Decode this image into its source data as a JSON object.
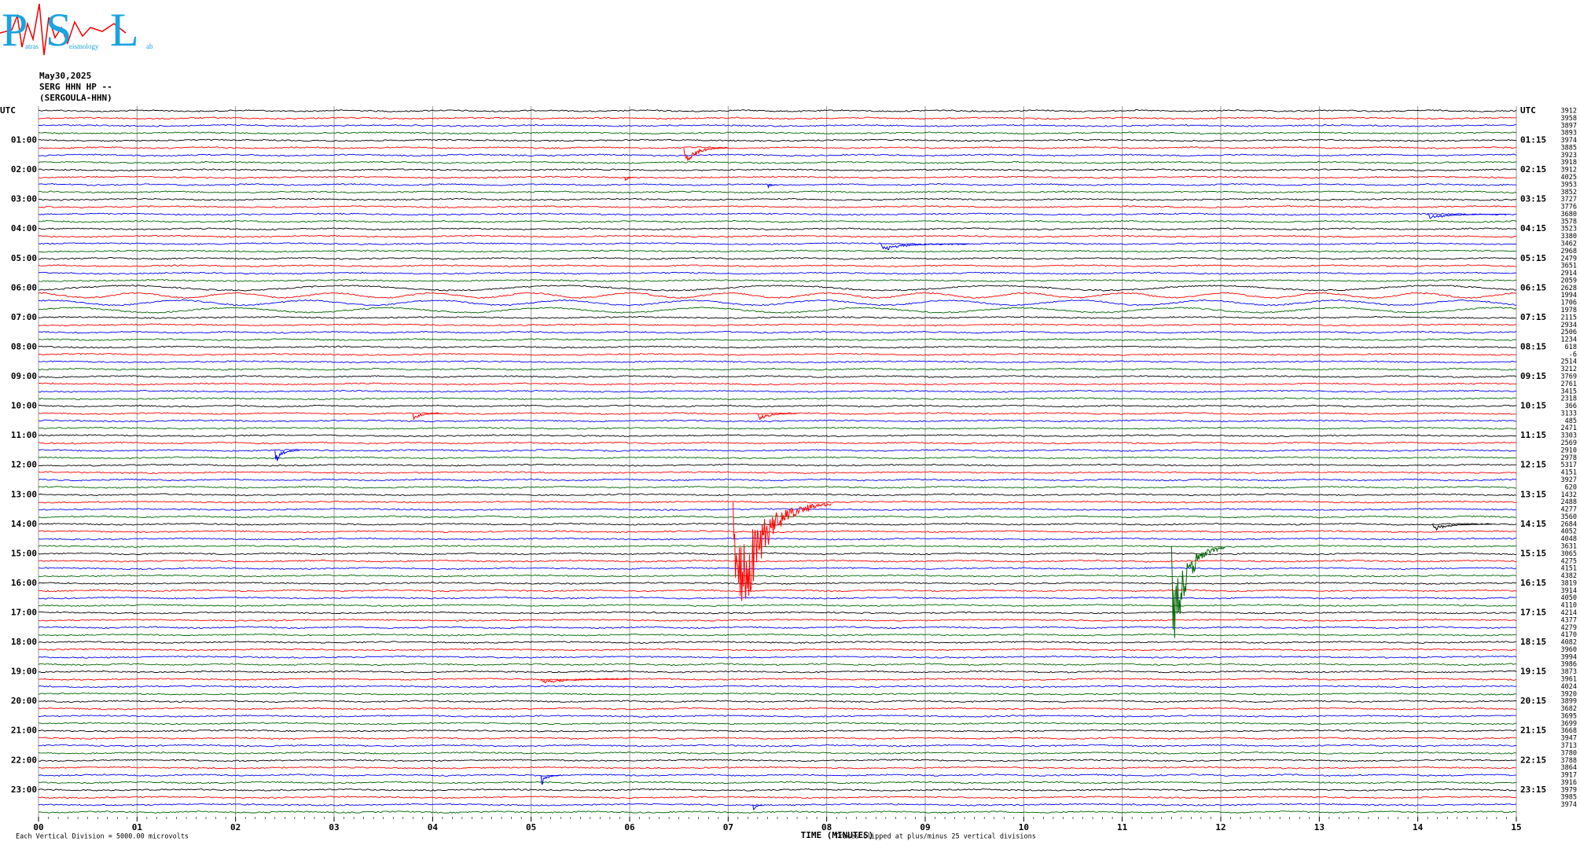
{
  "chart_data": {
    "type": "seismogram",
    "logo": {
      "letters": [
        "P",
        "S",
        "L"
      ],
      "words": [
        "atras",
        "eismology",
        "ab"
      ]
    },
    "date": "May30,2025",
    "station": "SERG HHN HP --",
    "station_name": "(SERGOULA-HHN)",
    "left_labels": [
      "UTC",
      "01:00",
      "02:00",
      "03:00",
      "04:00",
      "05:00",
      "06:00",
      "07:00",
      "08:00",
      "09:00",
      "10:00",
      "11:00",
      "12:00",
      "13:00",
      "14:00",
      "15:00",
      "16:00",
      "17:00",
      "18:00",
      "19:00",
      "20:00",
      "21:00",
      "22:00",
      "23:00"
    ],
    "right_labels": [
      "UTC",
      "01:15",
      "02:15",
      "03:15",
      "04:15",
      "05:15",
      "06:15",
      "07:15",
      "08:15",
      "09:15",
      "10:15",
      "11:15",
      "12:15",
      "13:15",
      "14:15",
      "15:15",
      "16:15",
      "17:15",
      "18:15",
      "19:15",
      "20:15",
      "21:15",
      "22:15",
      "23:15"
    ],
    "trace_values": [
      3912,
      3958,
      3897,
      3893,
      3974,
      3885,
      3923,
      3918,
      3912,
      4025,
      3953,
      3852,
      3727,
      3776,
      3680,
      3578,
      3523,
      3380,
      3462,
      2968,
      2479,
      3651,
      2914,
      2059,
      2628,
      1994,
      1706,
      1978,
      2115,
      2934,
      2506,
      1234,
      618,
      -6,
      2514,
      3212,
      3769,
      2761,
      3415,
      2318,
      366,
      3133,
      485,
      2471,
      3303,
      2569,
      2910,
      2978,
      5317,
      4151,
      3927,
      620,
      1432,
      2488,
      4277,
      3560,
      2684,
      4052,
      4048,
      3631,
      3065,
      4275,
      4151,
      4382,
      3819,
      3914,
      4050,
      4110,
      4214,
      4377,
      4279,
      4170,
      4082,
      3960,
      3994,
      3986,
      3873,
      3961,
      4024,
      3920,
      3899,
      3682,
      3695,
      3699,
      3668,
      3947,
      3713,
      3780,
      3788,
      3864,
      3917,
      3916,
      3979,
      3985,
      3974
    ],
    "colors": [
      "#000000",
      "#ff0000",
      "#0000ff",
      "#006400"
    ],
    "xlim": [
      0,
      15
    ],
    "xticks": [
      {
        "value": 0,
        "label": "00"
      },
      {
        "value": 1,
        "label": "01"
      },
      {
        "value": 2,
        "label": "02"
      },
      {
        "value": 3,
        "label": "03"
      },
      {
        "value": 4,
        "label": "04"
      },
      {
        "value": 5,
        "label": "05"
      },
      {
        "value": 6,
        "label": "06"
      },
      {
        "value": 7,
        "label": "07"
      },
      {
        "value": 8,
        "label": "08"
      },
      {
        "value": 9,
        "label": "09"
      },
      {
        "value": 10,
        "label": "10"
      },
      {
        "value": 11,
        "label": "11"
      },
      {
        "value": 12,
        "label": "12"
      },
      {
        "value": 13,
        "label": "13"
      },
      {
        "value": 14,
        "label": "14"
      },
      {
        "value": 15,
        "label": "15"
      }
    ],
    "xlabel": "TIME (MINUTES)",
    "note_left": "Each Vertical Division = 5000.00 microvolts",
    "note_right": "Traces clipped at plus/minus 25 vertical divisions",
    "events": [
      {
        "trace": 5,
        "minute": 6.55,
        "amp": 3,
        "duration": 0.45
      },
      {
        "trace": 9,
        "minute": 5.95,
        "amp": 1,
        "duration": 0.1
      },
      {
        "trace": 10,
        "minute": 7.4,
        "amp": 0.6,
        "duration": 0.1
      },
      {
        "trace": 14,
        "minute": 14.1,
        "amp": 0.8,
        "duration": 0.8
      },
      {
        "trace": 18,
        "minute": 8.55,
        "amp": 1.2,
        "duration": 0.9
      },
      {
        "trace": 41,
        "minute": 3.8,
        "amp": 1,
        "duration": 0.3
      },
      {
        "trace": 41,
        "minute": 7.3,
        "amp": 1.2,
        "duration": 0.4
      },
      {
        "trace": 46,
        "minute": 2.4,
        "amp": 2.2,
        "duration": 0.25
      },
      {
        "trace": 53,
        "minute": 7.05,
        "amp": 25,
        "duration": 1
      },
      {
        "trace": 56,
        "minute": 14.15,
        "amp": 1,
        "duration": 0.6
      },
      {
        "trace": 59,
        "minute": 11.5,
        "amp": 19,
        "duration": 0.55
      },
      {
        "trace": 77,
        "minute": 5.1,
        "amp": 0.8,
        "duration": 0.9
      },
      {
        "trace": 90,
        "minute": 5.1,
        "amp": 1.8,
        "duration": 0.2
      },
      {
        "trace": 94,
        "minute": 7.25,
        "amp": 1.6,
        "duration": 0.1
      }
    ]
  }
}
